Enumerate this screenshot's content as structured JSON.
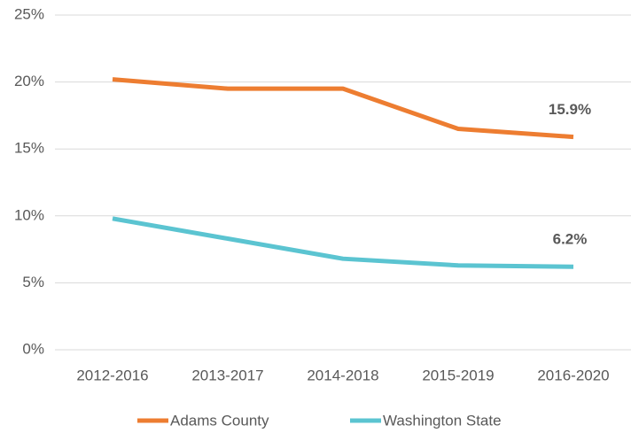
{
  "chart_data": {
    "type": "line",
    "categories": [
      "2012-2016",
      "2013-2017",
      "2014-2018",
      "2015-2019",
      "2016-2020"
    ],
    "series": [
      {
        "name": "Adams County",
        "color": "#ed7d31",
        "values": [
          20.2,
          19.5,
          19.5,
          16.5,
          15.9
        ],
        "value_labels": [
          null,
          null,
          null,
          null,
          "15.9%"
        ]
      },
      {
        "name": "Washington State",
        "color": "#5bc4d1",
        "values": [
          9.8,
          8.3,
          6.8,
          6.3,
          6.2
        ],
        "value_labels": [
          null,
          null,
          null,
          null,
          "6.2%"
        ]
      }
    ],
    "ylim": [
      0,
      25
    ],
    "yticks": [
      {
        "value": 0,
        "label": "0%"
      },
      {
        "value": 5,
        "label": "5%"
      },
      {
        "value": 10,
        "label": "10%"
      },
      {
        "value": 15,
        "label": "15%"
      },
      {
        "value": 20,
        "label": "20%"
      },
      {
        "value": 25,
        "label": "25%"
      }
    ],
    "grid": true,
    "legend": "bottom"
  }
}
